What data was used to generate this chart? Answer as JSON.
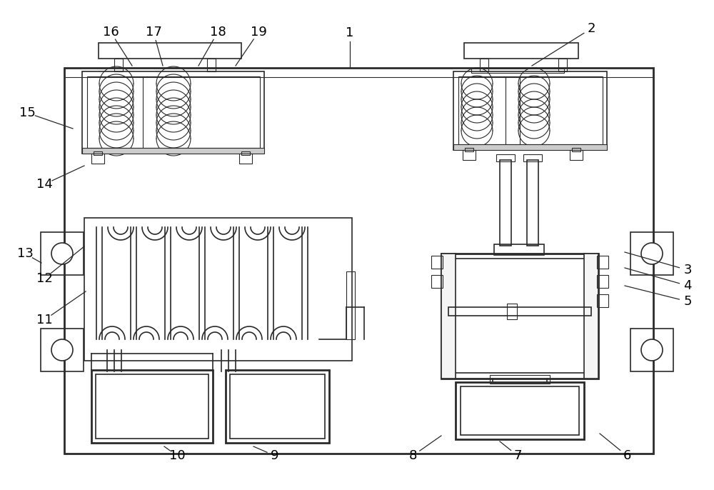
{
  "fig_width": 10.0,
  "fig_height": 6.86,
  "dpi": 100,
  "bg_color": "#ffffff",
  "lc": "#2a2a2a",
  "lwm": 2.0,
  "lwn": 1.2,
  "lwt": 0.8,
  "labels_leaders": [
    [
      "1",
      490,
      46,
      490,
      95
    ],
    [
      "2",
      828,
      40,
      745,
      92
    ],
    [
      "3",
      963,
      378,
      875,
      353
    ],
    [
      "4",
      963,
      400,
      875,
      375
    ],
    [
      "5",
      963,
      422,
      875,
      400
    ],
    [
      "6",
      878,
      638,
      840,
      607
    ],
    [
      "7",
      725,
      638,
      700,
      618
    ],
    [
      "8",
      578,
      638,
      618,
      610
    ],
    [
      "9",
      385,
      638,
      355,
      625
    ],
    [
      "10",
      248,
      638,
      230,
      625
    ],
    [
      "11",
      62,
      448,
      120,
      408
    ],
    [
      "12",
      62,
      390,
      118,
      345
    ],
    [
      "13",
      35,
      355,
      58,
      368
    ],
    [
      "14",
      62,
      258,
      118,
      232
    ],
    [
      "15",
      38,
      158,
      102,
      180
    ],
    [
      "16",
      155,
      45,
      185,
      92
    ],
    [
      "17",
      215,
      45,
      228,
      92
    ],
    [
      "18",
      305,
      45,
      278,
      92
    ],
    [
      "19",
      362,
      45,
      330,
      92
    ]
  ]
}
